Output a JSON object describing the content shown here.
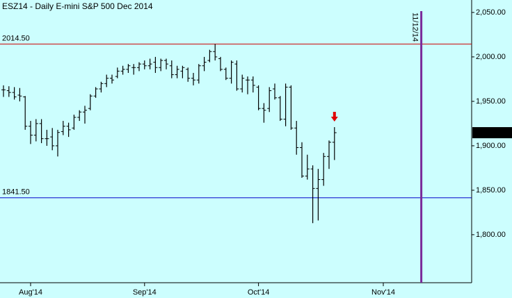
{
  "chart_data": {
    "type": "ohlc",
    "title": "ESZ14 - Daily  E-mini S&P 500 Dec 2014",
    "categories": [
      null,
      null,
      null,
      null,
      null,
      "Aug'14",
      null,
      null,
      null,
      null,
      null,
      null,
      null,
      null,
      null,
      null,
      null,
      null,
      null,
      null,
      null,
      null,
      null,
      null,
      null,
      null,
      "Sep'14",
      null,
      null,
      null,
      null,
      null,
      null,
      null,
      null,
      null,
      null,
      null,
      null,
      null,
      null,
      null,
      null,
      null,
      null,
      null,
      null,
      "Oct'14",
      null,
      null,
      null,
      null,
      null,
      null,
      null,
      null,
      null,
      null,
      null,
      null,
      null,
      null,
      null,
      null,
      null,
      null,
      null,
      null,
      null,
      null,
      "Nov'14",
      null,
      null,
      null,
      null,
      null,
      null,
      null,
      null,
      null,
      null,
      null,
      null,
      null,
      null,
      null,
      null
    ],
    "open": [
      1963,
      1962,
      1960,
      1957,
      1955,
      1922,
      1912,
      1925,
      1908,
      1910,
      1900,
      1916,
      1922,
      1920,
      1932,
      1938,
      1942,
      1956,
      1964,
      1970,
      1976,
      1978,
      1984,
      1986,
      1988,
      1988,
      1992,
      1990,
      1994,
      1988,
      1996,
      1990,
      1980,
      1984,
      1986,
      1976,
      1974,
      1990,
      1996,
      2006,
      1998,
      1986,
      1976,
      1992,
      1964,
      1974,
      1974,
      1966,
      1942,
      1942,
      1964,
      1954,
      1930,
      1966,
      1920,
      1898,
      1866,
      1874,
      1852,
      1862,
      1888,
      1904,
      null,
      null,
      null,
      null,
      null,
      null,
      null,
      null,
      null,
      null,
      null,
      null,
      null,
      null,
      null,
      null,
      null,
      null,
      null,
      null,
      null,
      null,
      null,
      null,
      null
    ],
    "high": [
      1968,
      1967,
      1966,
      1965,
      1956,
      1928,
      1930,
      1930,
      1918,
      1920,
      1918,
      1928,
      1926,
      1935,
      1940,
      1945,
      1958,
      1966,
      1972,
      1980,
      1980,
      1988,
      1990,
      1992,
      1992,
      1994,
      1996,
      1998,
      2000,
      1998,
      1998,
      1996,
      1990,
      1990,
      1988,
      1982,
      1992,
      2000,
      2008,
      2014.5,
      2000,
      1988,
      1996,
      1996,
      1980,
      1978,
      1978,
      1968,
      1948,
      1966,
      1970,
      1956,
      1970,
      1968,
      1928,
      1904,
      1890,
      1878,
      1874,
      1892,
      1906,
      1921,
      null,
      null,
      null,
      null,
      null,
      null,
      null,
      null,
      null,
      null,
      null,
      null,
      null,
      null,
      null,
      null,
      null,
      null,
      null,
      null,
      null,
      null,
      null,
      null,
      null
    ],
    "low": [
      1955,
      1955,
      1952,
      1950,
      1918,
      1902,
      1905,
      1903,
      1900,
      1895,
      1888,
      1912,
      1910,
      1918,
      1928,
      1925,
      1940,
      1954,
      1960,
      1966,
      1970,
      1976,
      1980,
      1982,
      1980,
      1984,
      1986,
      1986,
      1982,
      1984,
      1986,
      1976,
      1976,
      1976,
      1972,
      1968,
      1970,
      1984,
      1994,
      1996,
      1984,
      1974,
      1970,
      1962,
      1960,
      1958,
      1960,
      1940,
      1926,
      1938,
      1952,
      1928,
      1922,
      1918,
      1890,
      1864,
      1862,
      1813,
      1816,
      1855,
      1874,
      1884,
      null,
      null,
      null,
      null,
      null,
      null,
      null,
      null,
      null,
      null,
      null,
      null,
      null,
      null,
      null,
      null,
      null,
      null,
      null,
      null,
      null,
      null,
      null,
      null,
      null
    ],
    "close": [
      1963,
      1960,
      1955,
      1956,
      1922,
      1912,
      1925,
      1908,
      1908,
      1900,
      1915,
      1922,
      1918,
      1932,
      1938,
      1940,
      1956,
      1964,
      1970,
      1976,
      1974,
      1984,
      1986,
      1990,
      1988,
      1992,
      1990,
      1992,
      1988,
      1996,
      1992,
      1980,
      1986,
      1988,
      1976,
      1974,
      1990,
      1994,
      2006,
      2000,
      1986,
      1976,
      1994,
      1964,
      1976,
      1974,
      1968,
      1942,
      1940,
      1962,
      1954,
      1930,
      1966,
      1920,
      1898,
      1866,
      1874,
      1852,
      1862,
      1888,
      1904,
      1914.75,
      null,
      null,
      null,
      null,
      null,
      null,
      null,
      null,
      null,
      null,
      null,
      null,
      null,
      null,
      null,
      null,
      null,
      null,
      null,
      null,
      null,
      null,
      null,
      null,
      null
    ],
    "color": "#000000",
    "ylim": [
      1746,
      2064
    ],
    "yticks": [
      {
        "value": 1800,
        "label": "1,800.00"
      },
      {
        "value": 1850,
        "label": "1,850.00"
      },
      {
        "value": 1900,
        "label": "1,900.00"
      },
      {
        "value": 1950,
        "label": "1,950.00"
      },
      {
        "value": 2000,
        "label": "2,000.00"
      },
      {
        "value": 2050,
        "label": "2,050.00"
      }
    ],
    "last_price": {
      "value": 1914.75,
      "label": "1,914.75"
    },
    "hlines": [
      {
        "value": 2014.5,
        "label": "2014.50",
        "color": "#cc0000"
      },
      {
        "value": 1841.5,
        "label": "1841.50",
        "color": "#0000cc"
      }
    ],
    "vline": {
      "index": 77,
      "label": "11/12/14",
      "color": "#7a2a9a"
    }
  }
}
